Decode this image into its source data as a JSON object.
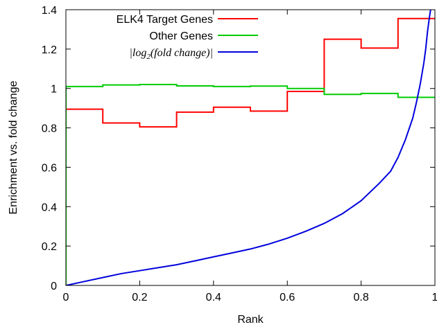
{
  "chart_data": {
    "type": "line",
    "title": "",
    "xlabel": "Rank",
    "ylabel": "Enrichment vs. fold change",
    "xlim": [
      0,
      1
    ],
    "ylim": [
      0,
      1.4
    ],
    "x_ticks": [
      0,
      0.2,
      0.4,
      0.6,
      0.8,
      1
    ],
    "x_tick_labels": [
      "0",
      "0.2",
      "0.4",
      "0.6",
      "0.8",
      "1"
    ],
    "y_ticks": [
      0,
      0.2,
      0.4,
      0.6,
      0.8,
      1,
      1.2,
      1.4
    ],
    "y_tick_labels": [
      "0",
      "0.2",
      "0.4",
      "0.6",
      "0.8",
      "1",
      "1.2",
      "1.4"
    ],
    "grid": false,
    "legend": {
      "placement": "top-right",
      "entries": [
        {
          "series": "elk4",
          "label_main": "ELK4 Target Genes"
        },
        {
          "series": "other",
          "label_main": "Other Genes"
        },
        {
          "series": "fold",
          "label_main": "|log",
          "label_sub": "2",
          "label_rest": "(fold change)|"
        }
      ]
    },
    "series": [
      {
        "key": "elk4",
        "name": "ELK4 Target Genes",
        "color": "#ff0000",
        "kind": "step",
        "bin_edges": [
          0,
          0.1,
          0.2,
          0.3,
          0.4,
          0.5,
          0.6,
          0.7,
          0.8,
          0.9,
          1.0
        ],
        "values": [
          0.895,
          0.825,
          0.805,
          0.88,
          0.905,
          0.885,
          0.985,
          1.25,
          1.205,
          1.355
        ]
      },
      {
        "key": "other",
        "name": "Other Genes",
        "color": "#00cc00",
        "kind": "step",
        "bin_edges": [
          0,
          0.1,
          0.2,
          0.3,
          0.4,
          0.5,
          0.6,
          0.7,
          0.8,
          0.9,
          1.0
        ],
        "values": [
          1.01,
          1.018,
          1.02,
          1.013,
          1.01,
          1.012,
          1.0,
          0.97,
          0.975,
          0.955
        ]
      },
      {
        "key": "fold",
        "name": "|log2(fold change)|",
        "color": "#0000dd",
        "kind": "line",
        "x": [
          0,
          0.05,
          0.1,
          0.15,
          0.2,
          0.25,
          0.3,
          0.35,
          0.4,
          0.45,
          0.5,
          0.55,
          0.6,
          0.65,
          0.7,
          0.75,
          0.8,
          0.85,
          0.88,
          0.9,
          0.92,
          0.94,
          0.95,
          0.96,
          0.97,
          0.975,
          0.98,
          0.985,
          0.99
        ],
        "y": [
          0,
          0.02,
          0.04,
          0.06,
          0.075,
          0.09,
          0.105,
          0.125,
          0.145,
          0.165,
          0.185,
          0.21,
          0.24,
          0.275,
          0.315,
          0.365,
          0.43,
          0.52,
          0.58,
          0.65,
          0.74,
          0.85,
          0.93,
          1.02,
          1.13,
          1.2,
          1.29,
          1.36,
          1.42
        ]
      }
    ]
  }
}
